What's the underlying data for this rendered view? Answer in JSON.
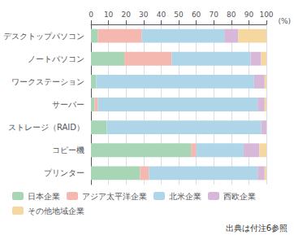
{
  "chart_data": {
    "type": "bar",
    "orientation": "horizontal",
    "stacked": true,
    "categories": [
      "デスクトップパソコン",
      "ノートパソコン",
      "ワークステーション",
      "サーバー",
      "ストレージ（RAID）",
      "コピー機",
      "プリンター"
    ],
    "series": [
      {
        "name": "日本企業",
        "color": "#a8d5b5",
        "values": [
          4,
          19,
          3,
          2,
          9,
          57,
          28
        ]
      },
      {
        "name": "アジア太平洋企業",
        "color": "#f4b8b0",
        "values": [
          25,
          27,
          0,
          2,
          0,
          3,
          5
        ]
      },
      {
        "name": "北米企業",
        "color": "#aed6e8",
        "values": [
          47,
          45,
          90,
          91,
          88,
          27,
          62
        ]
      },
      {
        "name": "西欧企業",
        "color": "#d8b8d8",
        "values": [
          8,
          6,
          6,
          4,
          3,
          9,
          4
        ]
      },
      {
        "name": "その他地域企業",
        "color": "#f5d8a0",
        "values": [
          16,
          3,
          1,
          1,
          0,
          4,
          1
        ]
      }
    ],
    "xlabel": "(%)",
    "xlim": [
      0,
      100
    ],
    "xticks": [
      0,
      10,
      20,
      30,
      40,
      50,
      60,
      70,
      80,
      90,
      100
    ],
    "grid": true,
    "legend": "bottom",
    "annotations": [
      "出典は付注6参照"
    ]
  }
}
